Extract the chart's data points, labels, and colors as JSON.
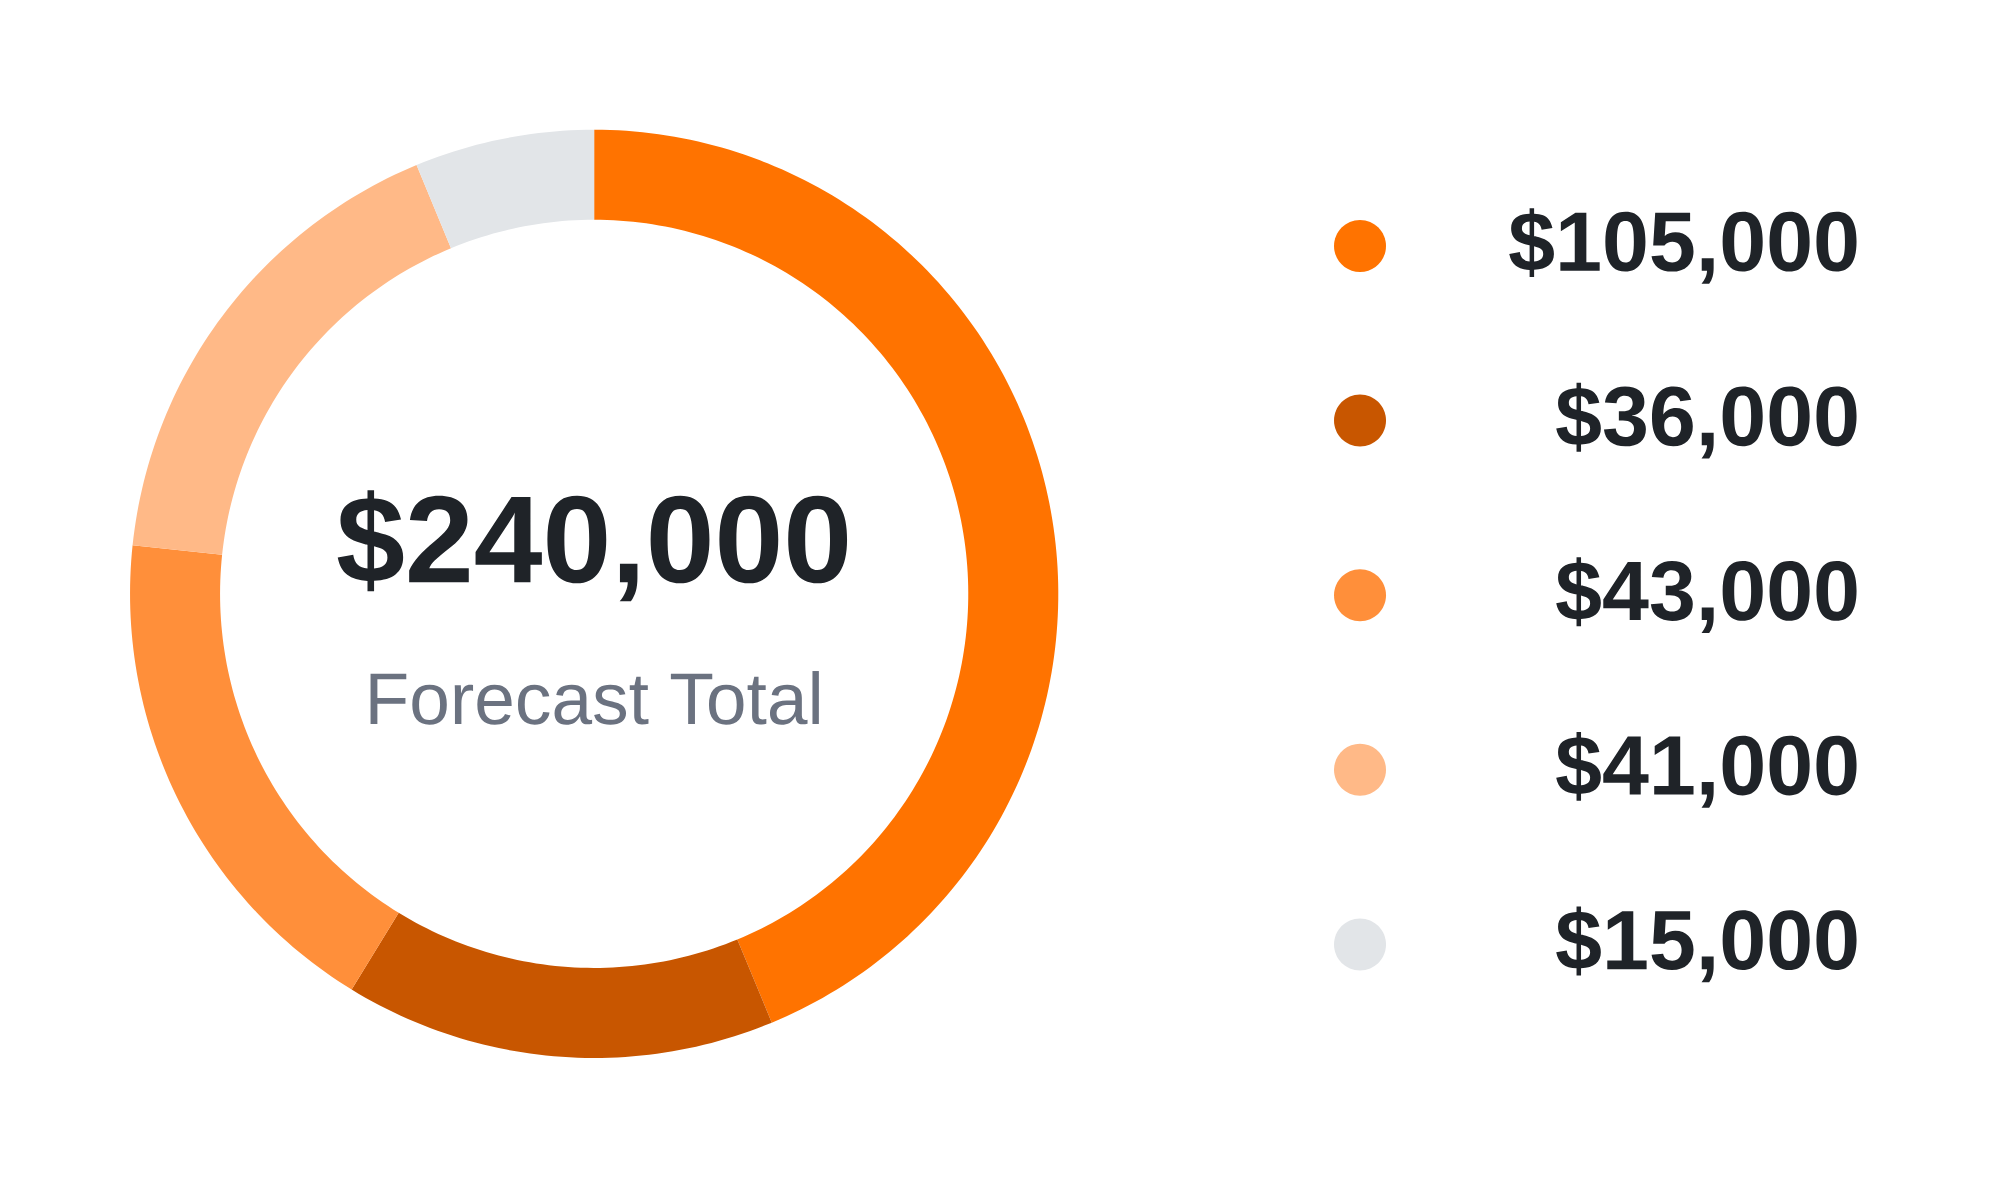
{
  "chart_data": {
    "type": "donut",
    "title": "$240,000",
    "subtitle": "Forecast Total",
    "categories": [
      "$105,000",
      "$36,000",
      "$43,000",
      "$41,000",
      "$15,000"
    ],
    "values": [
      105000,
      36000,
      43000,
      41000,
      15000
    ],
    "colors": [
      "#ff7300",
      "#c85600",
      "#ff8f3a",
      "#ffb987",
      "#e2e5e8"
    ],
    "legend": "right"
  }
}
